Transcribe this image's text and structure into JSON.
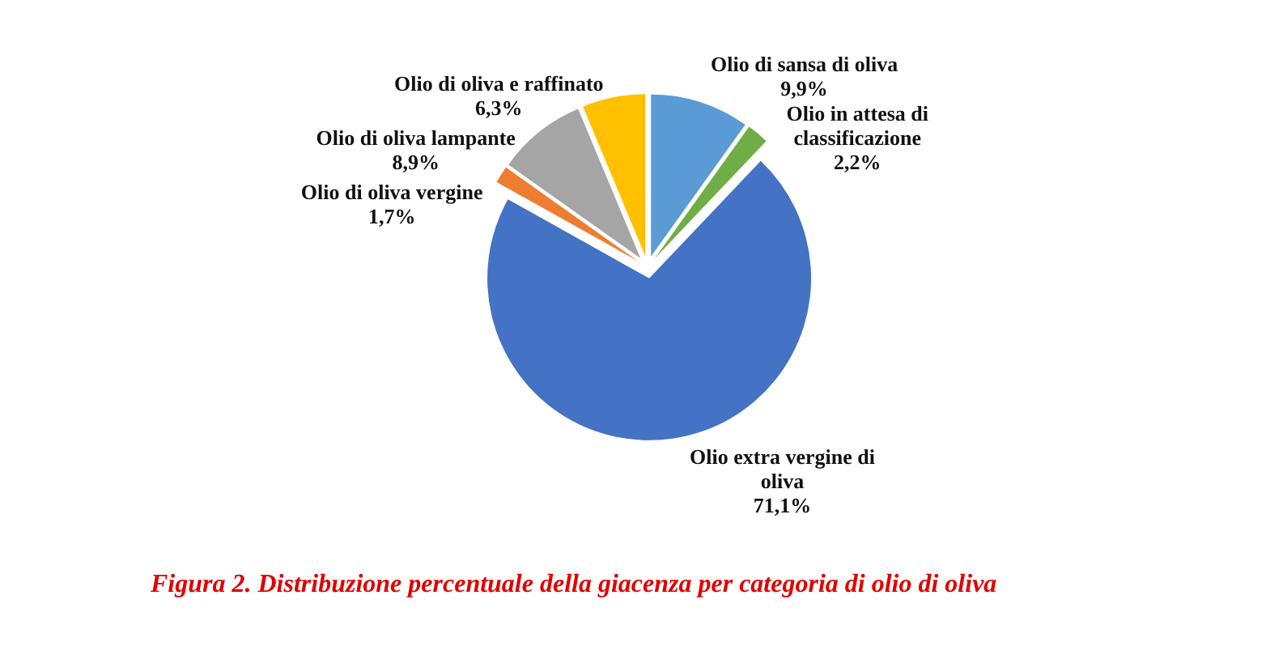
{
  "chart_data": {
    "type": "pie",
    "title": "Figura 2. Distribuzione percentuale della giacenza per categoria di olio di oliva",
    "categories": [
      "Olio di sansa di oliva",
      "Olio in attesa di classificazione",
      "Olio extra vergine di oliva",
      "Olio di oliva vergine",
      "Olio di oliva lampante",
      "Olio di oliva e raffinato"
    ],
    "values": [
      9.9,
      2.2,
      71.1,
      1.7,
      8.9,
      6.3
    ],
    "colors": [
      "#5b9bd5",
      "#70ad47",
      "#4472c4",
      "#ed7d31",
      "#a5a5a5",
      "#ffc000"
    ],
    "value_labels": [
      "9,9%",
      "2,2%",
      "71,1%",
      "1,7%",
      "8,9%",
      "6,3%"
    ]
  }
}
